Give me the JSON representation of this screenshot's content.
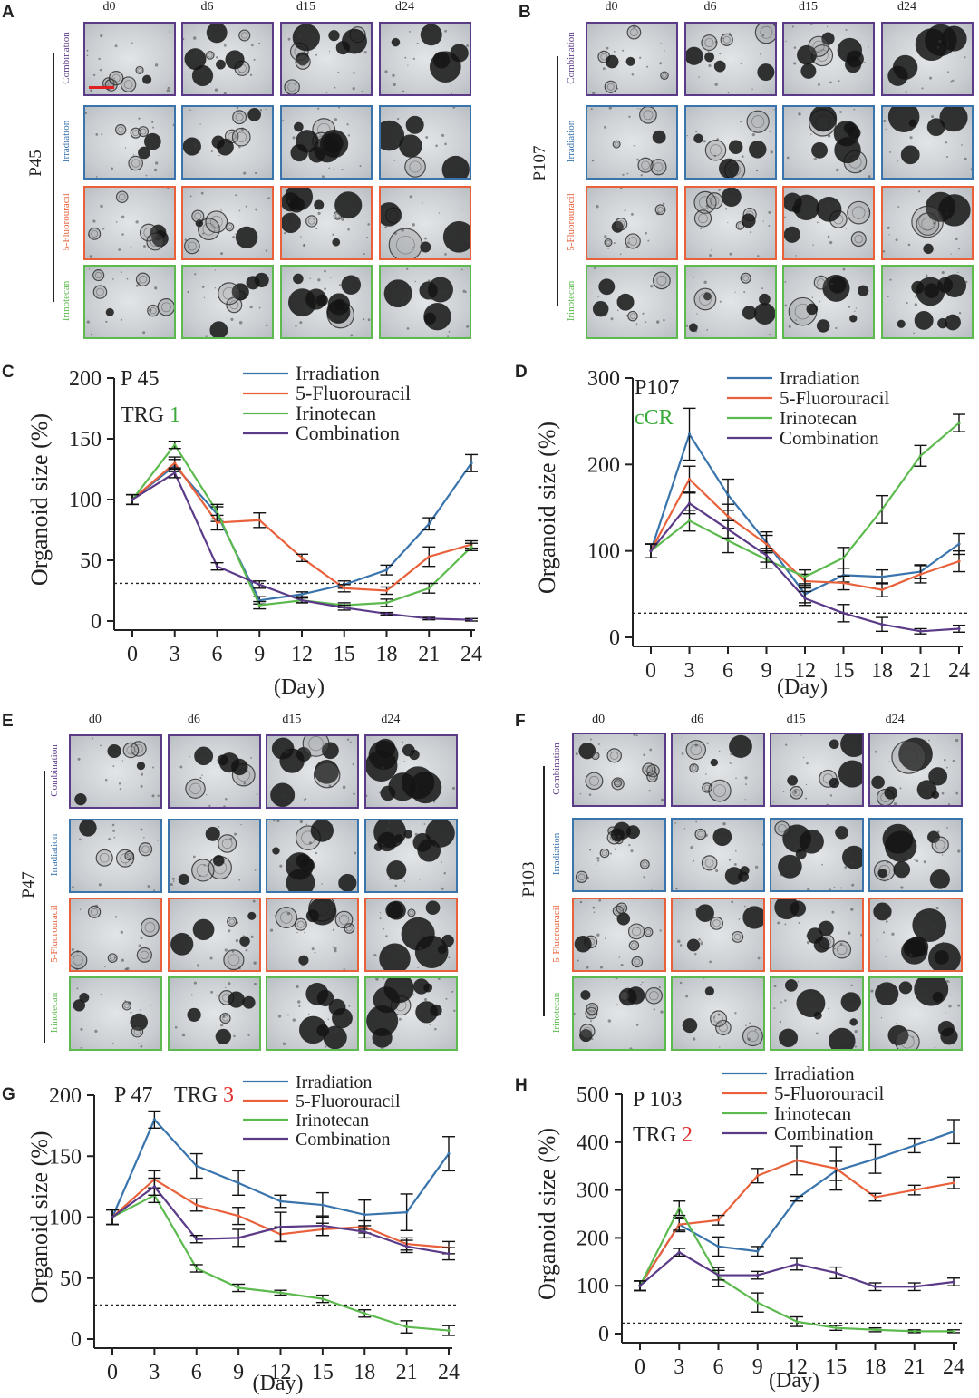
{
  "colors": {
    "irradiation": "#3a74ad",
    "fluorouracil": "#e8613b",
    "irinotecan": "#5dba4f",
    "combination": "#5b3a88",
    "trg_green": "#3aaa3a",
    "trg_red": "#e0302f"
  },
  "grid_days": [
    "d0",
    "d6",
    "d15",
    "d24"
  ],
  "image_panels": [
    {
      "letter": "A",
      "patient": "P45",
      "rows": [
        "Combination",
        "Irradiation",
        "5-Fluorouracil",
        "Irinotecan"
      ]
    },
    {
      "letter": "B",
      "patient": "P107",
      "rows": [
        "Combination",
        "Irradiation",
        "5-Fluorouracil",
        "Irinotecan"
      ]
    },
    {
      "letter": "E",
      "patient": "P47",
      "rows": [
        "Combination",
        "Irradiation",
        "5-Fluorouracil",
        "Irinotecan"
      ]
    },
    {
      "letter": "F",
      "patient": "P103",
      "rows": [
        "Combination",
        "Irradiation",
        "5-Fluorouracil",
        "Irinotecan"
      ]
    }
  ],
  "chart_data": [
    {
      "type": "line",
      "letter": "C",
      "title": "P 45",
      "trg_label": "TRG",
      "trg_value": "1",
      "trg_color": "trg_green",
      "xlabel": "(Day)",
      "ylabel": "Organoid size (%)",
      "x": [
        0,
        3,
        6,
        9,
        12,
        15,
        18,
        21,
        24
      ],
      "xlim": [
        0,
        24
      ],
      "ylim": [
        0,
        200
      ],
      "yticks": [
        0,
        50,
        100,
        150,
        200
      ],
      "threshold": 31,
      "legend": [
        "Irradiation",
        "5-Fluorouracil",
        "Irinotecan",
        "Combination"
      ],
      "series": [
        {
          "name": "Irradiation",
          "color": "irradiation",
          "values": [
            100,
            128,
            88,
            17,
            22,
            30,
            42,
            80,
            130
          ],
          "errors": [
            4,
            5,
            6,
            3,
            2,
            3,
            4,
            5,
            7
          ]
        },
        {
          "name": "5-Fluorouracil",
          "color": "fluorouracil",
          "values": [
            100,
            130,
            81,
            83,
            52,
            27,
            25,
            53,
            63
          ],
          "errors": [
            4,
            5,
            6,
            6,
            3,
            3,
            3,
            8,
            3
          ]
        },
        {
          "name": "Irinotecan",
          "color": "irinotecan",
          "values": [
            100,
            145,
            90,
            13,
            17,
            13,
            15,
            27,
            61
          ],
          "errors": [
            4,
            3,
            6,
            3,
            2,
            2,
            3,
            4,
            3
          ]
        },
        {
          "name": "Combination",
          "color": "combination",
          "values": [
            100,
            122,
            45,
            30,
            17,
            11,
            6,
            2,
            1
          ],
          "errors": [
            4,
            4,
            3,
            3,
            2,
            2,
            1,
            1,
            1
          ]
        }
      ]
    },
    {
      "type": "line",
      "letter": "D",
      "title": "P107",
      "trg_label": "",
      "trg_value": "cCR",
      "trg_color": "trg_green",
      "xlabel": "(Day)",
      "ylabel": "Organoid size (%)",
      "x": [
        0,
        3,
        6,
        9,
        12,
        15,
        18,
        21,
        24
      ],
      "xlim": [
        0,
        24
      ],
      "ylim": [
        0,
        300
      ],
      "yticks": [
        0,
        100,
        200,
        300
      ],
      "threshold": 28,
      "legend": [
        "Irradiation",
        "5-Fluorouracil",
        "Irinotecan",
        "Combination"
      ],
      "series": [
        {
          "name": "Irradiation",
          "color": "irradiation",
          "values": [
            100,
            235,
            165,
            110,
            50,
            72,
            70,
            76,
            108
          ],
          "errors": [
            8,
            30,
            18,
            12,
            10,
            8,
            8,
            8,
            12
          ]
        },
        {
          "name": "5-Fluorouracil",
          "color": "fluorouracil",
          "values": [
            100,
            183,
            140,
            108,
            65,
            63,
            55,
            73,
            88
          ],
          "errors": [
            8,
            15,
            14,
            10,
            8,
            8,
            8,
            10,
            12
          ]
        },
        {
          "name": "Irinotecan",
          "color": "irinotecan",
          "values": [
            100,
            135,
            112,
            90,
            70,
            92,
            148,
            210,
            248
          ],
          "errors": [
            8,
            12,
            14,
            10,
            8,
            12,
            16,
            12,
            10
          ]
        },
        {
          "name": "Combination",
          "color": "combination",
          "values": [
            100,
            155,
            125,
            95,
            45,
            28,
            15,
            7,
            10
          ],
          "errors": [
            8,
            12,
            10,
            8,
            8,
            10,
            8,
            3,
            4
          ]
        }
      ]
    },
    {
      "type": "line",
      "letter": "G",
      "title": "P 47",
      "trg_label": "TRG",
      "trg_value": "3",
      "trg_color": "trg_red",
      "xlabel": "(Day)",
      "ylabel": "Organoid size (%)",
      "x": [
        0,
        3,
        6,
        9,
        12,
        15,
        18,
        21,
        24
      ],
      "xlim": [
        0,
        24
      ],
      "ylim": [
        0,
        200
      ],
      "yticks": [
        0,
        50,
        100,
        150,
        200
      ],
      "threshold": 28,
      "legend": [
        "Irradiation",
        "5-Fluorouracil",
        "Irinotecan",
        "Combination"
      ],
      "series": [
        {
          "name": "Irradiation",
          "color": "irradiation",
          "values": [
            100,
            180,
            142,
            128,
            113,
            110,
            102,
            104,
            152
          ],
          "errors": [
            6,
            7,
            10,
            10,
            5,
            10,
            12,
            15,
            14
          ]
        },
        {
          "name": "5-Fluorouracil",
          "color": "fluorouracil",
          "values": [
            100,
            131,
            110,
            101,
            86,
            90,
            92,
            78,
            75
          ],
          "errors": [
            6,
            7,
            5,
            7,
            6,
            5,
            5,
            5,
            5
          ]
        },
        {
          "name": "Irinotecan",
          "color": "irinotecan",
          "values": [
            100,
            118,
            58,
            42,
            38,
            33,
            21,
            10,
            7
          ],
          "errors": [
            6,
            6,
            3,
            3,
            2,
            3,
            3,
            5,
            4
          ]
        },
        {
          "name": "Combination",
          "color": "combination",
          "values": [
            100,
            125,
            82,
            83,
            92,
            93,
            88,
            76,
            70
          ],
          "errors": [
            6,
            7,
            3,
            7,
            12,
            8,
            5,
            5,
            5
          ]
        }
      ]
    },
    {
      "type": "line",
      "letter": "H",
      "title": "P 103",
      "trg_label": "TRG",
      "trg_value": "2",
      "trg_color": "trg_red",
      "xlabel": "(Day)",
      "ylabel": "Organoid size (%)",
      "x": [
        0,
        3,
        6,
        9,
        12,
        15,
        18,
        21,
        24
      ],
      "xlim": [
        0,
        24
      ],
      "ylim": [
        0,
        500
      ],
      "yticks": [
        0,
        100,
        200,
        300,
        400,
        500
      ],
      "threshold": 22,
      "legend": [
        "Irradiation",
        "5-Fluorouracil",
        "Irinotecan",
        "Combination"
      ],
      "series": [
        {
          "name": "Irradiation",
          "color": "irradiation",
          "values": [
            100,
            228,
            182,
            172,
            282,
            340,
            365,
            393,
            422
          ],
          "errors": [
            10,
            15,
            20,
            10,
            5,
            20,
            30,
            15,
            25
          ]
        },
        {
          "name": "5-Fluorouracil",
          "color": "fluorouracil",
          "values": [
            100,
            228,
            237,
            330,
            362,
            345,
            285,
            300,
            315
          ],
          "errors": [
            10,
            12,
            10,
            15,
            30,
            45,
            8,
            10,
            12
          ]
        },
        {
          "name": "Irinotecan",
          "color": "irinotecan",
          "values": [
            100,
            262,
            118,
            65,
            25,
            12,
            8,
            5,
            5
          ],
          "errors": [
            10,
            15,
            20,
            20,
            10,
            5,
            4,
            3,
            3
          ]
        },
        {
          "name": "Combination",
          "color": "combination",
          "values": [
            100,
            170,
            122,
            122,
            145,
            127,
            98,
            98,
            108
          ],
          "errors": [
            10,
            8,
            10,
            8,
            12,
            12,
            8,
            8,
            8
          ]
        }
      ]
    }
  ]
}
